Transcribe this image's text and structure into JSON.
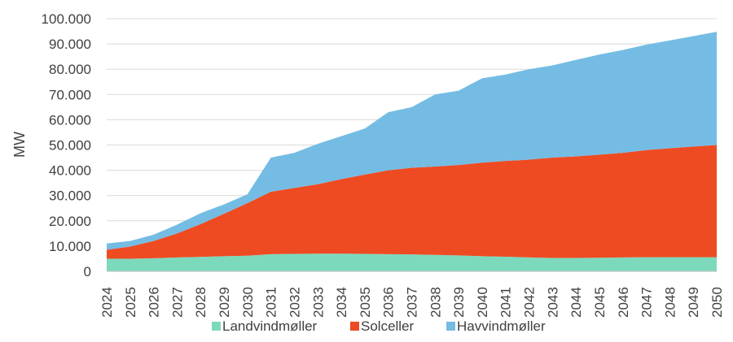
{
  "chart_data": {
    "type": "area",
    "stacked": true,
    "ylabel": "MW",
    "xlabel": "",
    "ylim": [
      0,
      100000
    ],
    "ytick_values": [
      0,
      10000,
      20000,
      30000,
      40000,
      50000,
      60000,
      70000,
      80000,
      90000,
      100000
    ],
    "ytick_labels": [
      "0",
      "10.000",
      "20.000",
      "30.000",
      "40.000",
      "50.000",
      "60.000",
      "70.000",
      "80.000",
      "90.000",
      "100.000"
    ],
    "grid": true,
    "legend_position": "bottom",
    "categories": [
      "2024",
      "2025",
      "2026",
      "2027",
      "2028",
      "2029",
      "2030",
      "2031",
      "2032",
      "2033",
      "2034",
      "2035",
      "2036",
      "2037",
      "2038",
      "2039",
      "2040",
      "2041",
      "2042",
      "2043",
      "2044",
      "2045",
      "2046",
      "2047",
      "2048",
      "2049",
      "2050"
    ],
    "series": [
      {
        "name": "Landvindmøller",
        "color": "#7dd9bc",
        "values": [
          5000,
          5000,
          5200,
          5500,
          5700,
          6000,
          6200,
          6800,
          6900,
          7000,
          7000,
          6900,
          6800,
          6700,
          6500,
          6300,
          6000,
          5800,
          5500,
          5300,
          5300,
          5400,
          5500,
          5600,
          5600,
          5600,
          5600
        ]
      },
      {
        "name": "Solceller",
        "color": "#ee4b23",
        "values": [
          3500,
          4800,
          6800,
          9500,
          13000,
          16800,
          20800,
          24700,
          26100,
          27500,
          29500,
          31400,
          33200,
          34300,
          35000,
          35800,
          37000,
          37900,
          38700,
          39700,
          40200,
          40800,
          41400,
          42400,
          43100,
          43800,
          44400
        ]
      },
      {
        "name": "Havvindmøller",
        "color": "#74bce4",
        "values": [
          2500,
          2200,
          2500,
          3500,
          4300,
          3700,
          3500,
          13500,
          13900,
          16000,
          17000,
          18200,
          23000,
          24000,
          28500,
          29400,
          33400,
          34200,
          35800,
          36500,
          38200,
          39600,
          40700,
          41700,
          42700,
          43700,
          44800
        ]
      }
    ]
  }
}
